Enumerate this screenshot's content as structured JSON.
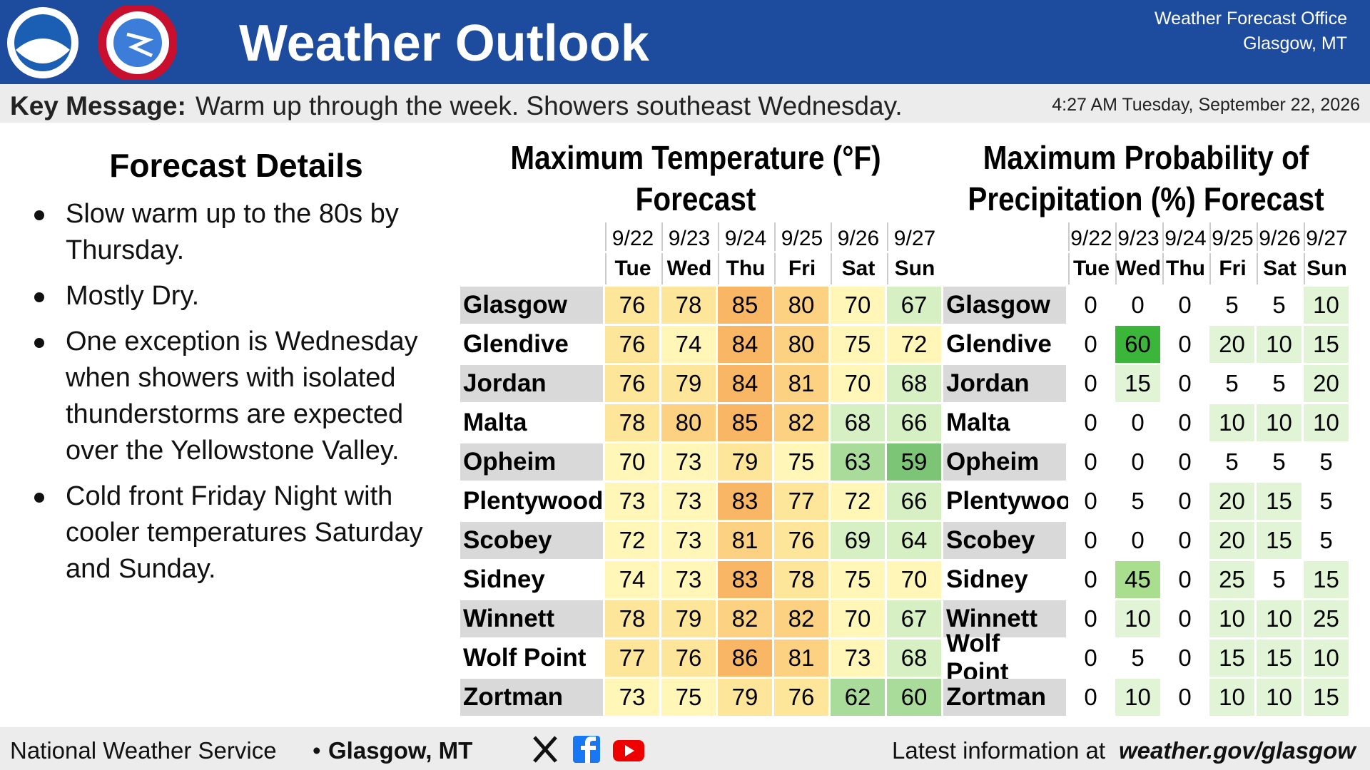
{
  "header": {
    "title": "Weather Outlook",
    "office": [
      "Weather Forecast Office",
      "Glasgow, MT"
    ]
  },
  "key_message": {
    "label": "Key Message:",
    "text": "Warm up through the week. Showers southeast Wednesday.",
    "timestamp": "4:27 AM Tuesday, September 22, 2026"
  },
  "details": {
    "title": "Forecast Details",
    "bullets": [
      "Slow warm up to the 80s by Thursday.",
      "Mostly Dry.",
      "One exception is Wednesday when showers with isolated thunderstorms are expected over the Yellowstone Valley.",
      "Cold front Friday Night with cooler temperatures Saturday and Sunday."
    ]
  },
  "temperature_table": {
    "title": [
      "Maximum Temperature (°F)",
      "Forecast"
    ],
    "dates": [
      "9/22",
      "9/23",
      "9/24",
      "9/25",
      "9/26",
      "9/27"
    ],
    "days": [
      "Tue",
      "Wed",
      "Thu",
      "Fri",
      "Sat",
      "Sun"
    ],
    "color_scale": [
      {
        "max": 59,
        "color": "#7cc576"
      },
      {
        "max": 63,
        "color": "#a9dc9a"
      },
      {
        "max": 69,
        "color": "#d6f0c4"
      },
      {
        "max": 75,
        "color": "#fff6b8"
      },
      {
        "max": 79,
        "color": "#fde59a"
      },
      {
        "max": 82,
        "color": "#fcd181"
      },
      {
        "max": 86,
        "color": "#f9b766"
      }
    ],
    "rows": [
      {
        "location": "Glasgow",
        "values": [
          76,
          78,
          85,
          80,
          70,
          67
        ]
      },
      {
        "location": "Glendive",
        "values": [
          76,
          74,
          84,
          80,
          75,
          72
        ]
      },
      {
        "location": "Jordan",
        "values": [
          76,
          79,
          84,
          81,
          70,
          68
        ]
      },
      {
        "location": "Malta",
        "values": [
          78,
          80,
          85,
          82,
          68,
          66
        ]
      },
      {
        "location": "Opheim",
        "values": [
          70,
          73,
          79,
          75,
          63,
          59
        ]
      },
      {
        "location": "Plentywood",
        "values": [
          73,
          73,
          83,
          77,
          72,
          66
        ]
      },
      {
        "location": "Scobey",
        "values": [
          72,
          73,
          81,
          76,
          69,
          64
        ]
      },
      {
        "location": "Sidney",
        "values": [
          74,
          73,
          83,
          78,
          75,
          70
        ]
      },
      {
        "location": "Winnett",
        "values": [
          78,
          79,
          82,
          82,
          70,
          67
        ]
      },
      {
        "location": "Wolf Point",
        "values": [
          77,
          76,
          86,
          81,
          73,
          68
        ]
      },
      {
        "location": "Zortman",
        "values": [
          73,
          75,
          79,
          76,
          62,
          60
        ]
      }
    ]
  },
  "precip_table": {
    "title": [
      "Maximum Probability of",
      "Precipitation (%) Forecast"
    ],
    "dates": [
      "9/22",
      "9/23",
      "9/24",
      "9/25",
      "9/26",
      "9/27"
    ],
    "days": [
      "Tue",
      "Wed",
      "Thu",
      "Fri",
      "Sat",
      "Sun"
    ],
    "color_scale": [
      {
        "max": 5,
        "color": "#ffffff"
      },
      {
        "max": 25,
        "color": "#e1f5d6"
      },
      {
        "max": 45,
        "color": "#a8de8e"
      },
      {
        "max": 60,
        "color": "#3bb53a"
      }
    ],
    "rows": [
      {
        "location": "Glasgow",
        "values": [
          0,
          0,
          0,
          5,
          5,
          10
        ]
      },
      {
        "location": "Glendive",
        "values": [
          0,
          60,
          0,
          20,
          10,
          15
        ]
      },
      {
        "location": "Jordan",
        "values": [
          0,
          15,
          0,
          5,
          5,
          20
        ]
      },
      {
        "location": "Malta",
        "values": [
          0,
          0,
          0,
          10,
          10,
          10
        ]
      },
      {
        "location": "Opheim",
        "values": [
          0,
          0,
          0,
          5,
          5,
          5
        ]
      },
      {
        "location": "Plentywood",
        "values": [
          0,
          5,
          0,
          20,
          15,
          5
        ]
      },
      {
        "location": "Scobey",
        "values": [
          0,
          0,
          0,
          20,
          15,
          5
        ]
      },
      {
        "location": "Sidney",
        "values": [
          0,
          45,
          0,
          25,
          5,
          15
        ]
      },
      {
        "location": "Winnett",
        "values": [
          0,
          10,
          0,
          10,
          10,
          25
        ]
      },
      {
        "location": "Wolf Point",
        "values": [
          0,
          5,
          0,
          15,
          15,
          10
        ]
      },
      {
        "location": "Zortman",
        "values": [
          0,
          10,
          0,
          10,
          10,
          15
        ]
      }
    ]
  },
  "footer": {
    "org": "National Weather Service",
    "separator": "•",
    "office": "Glasgow, MT",
    "info_label": "Latest information at",
    "url": "weather.gov/glasgow"
  }
}
